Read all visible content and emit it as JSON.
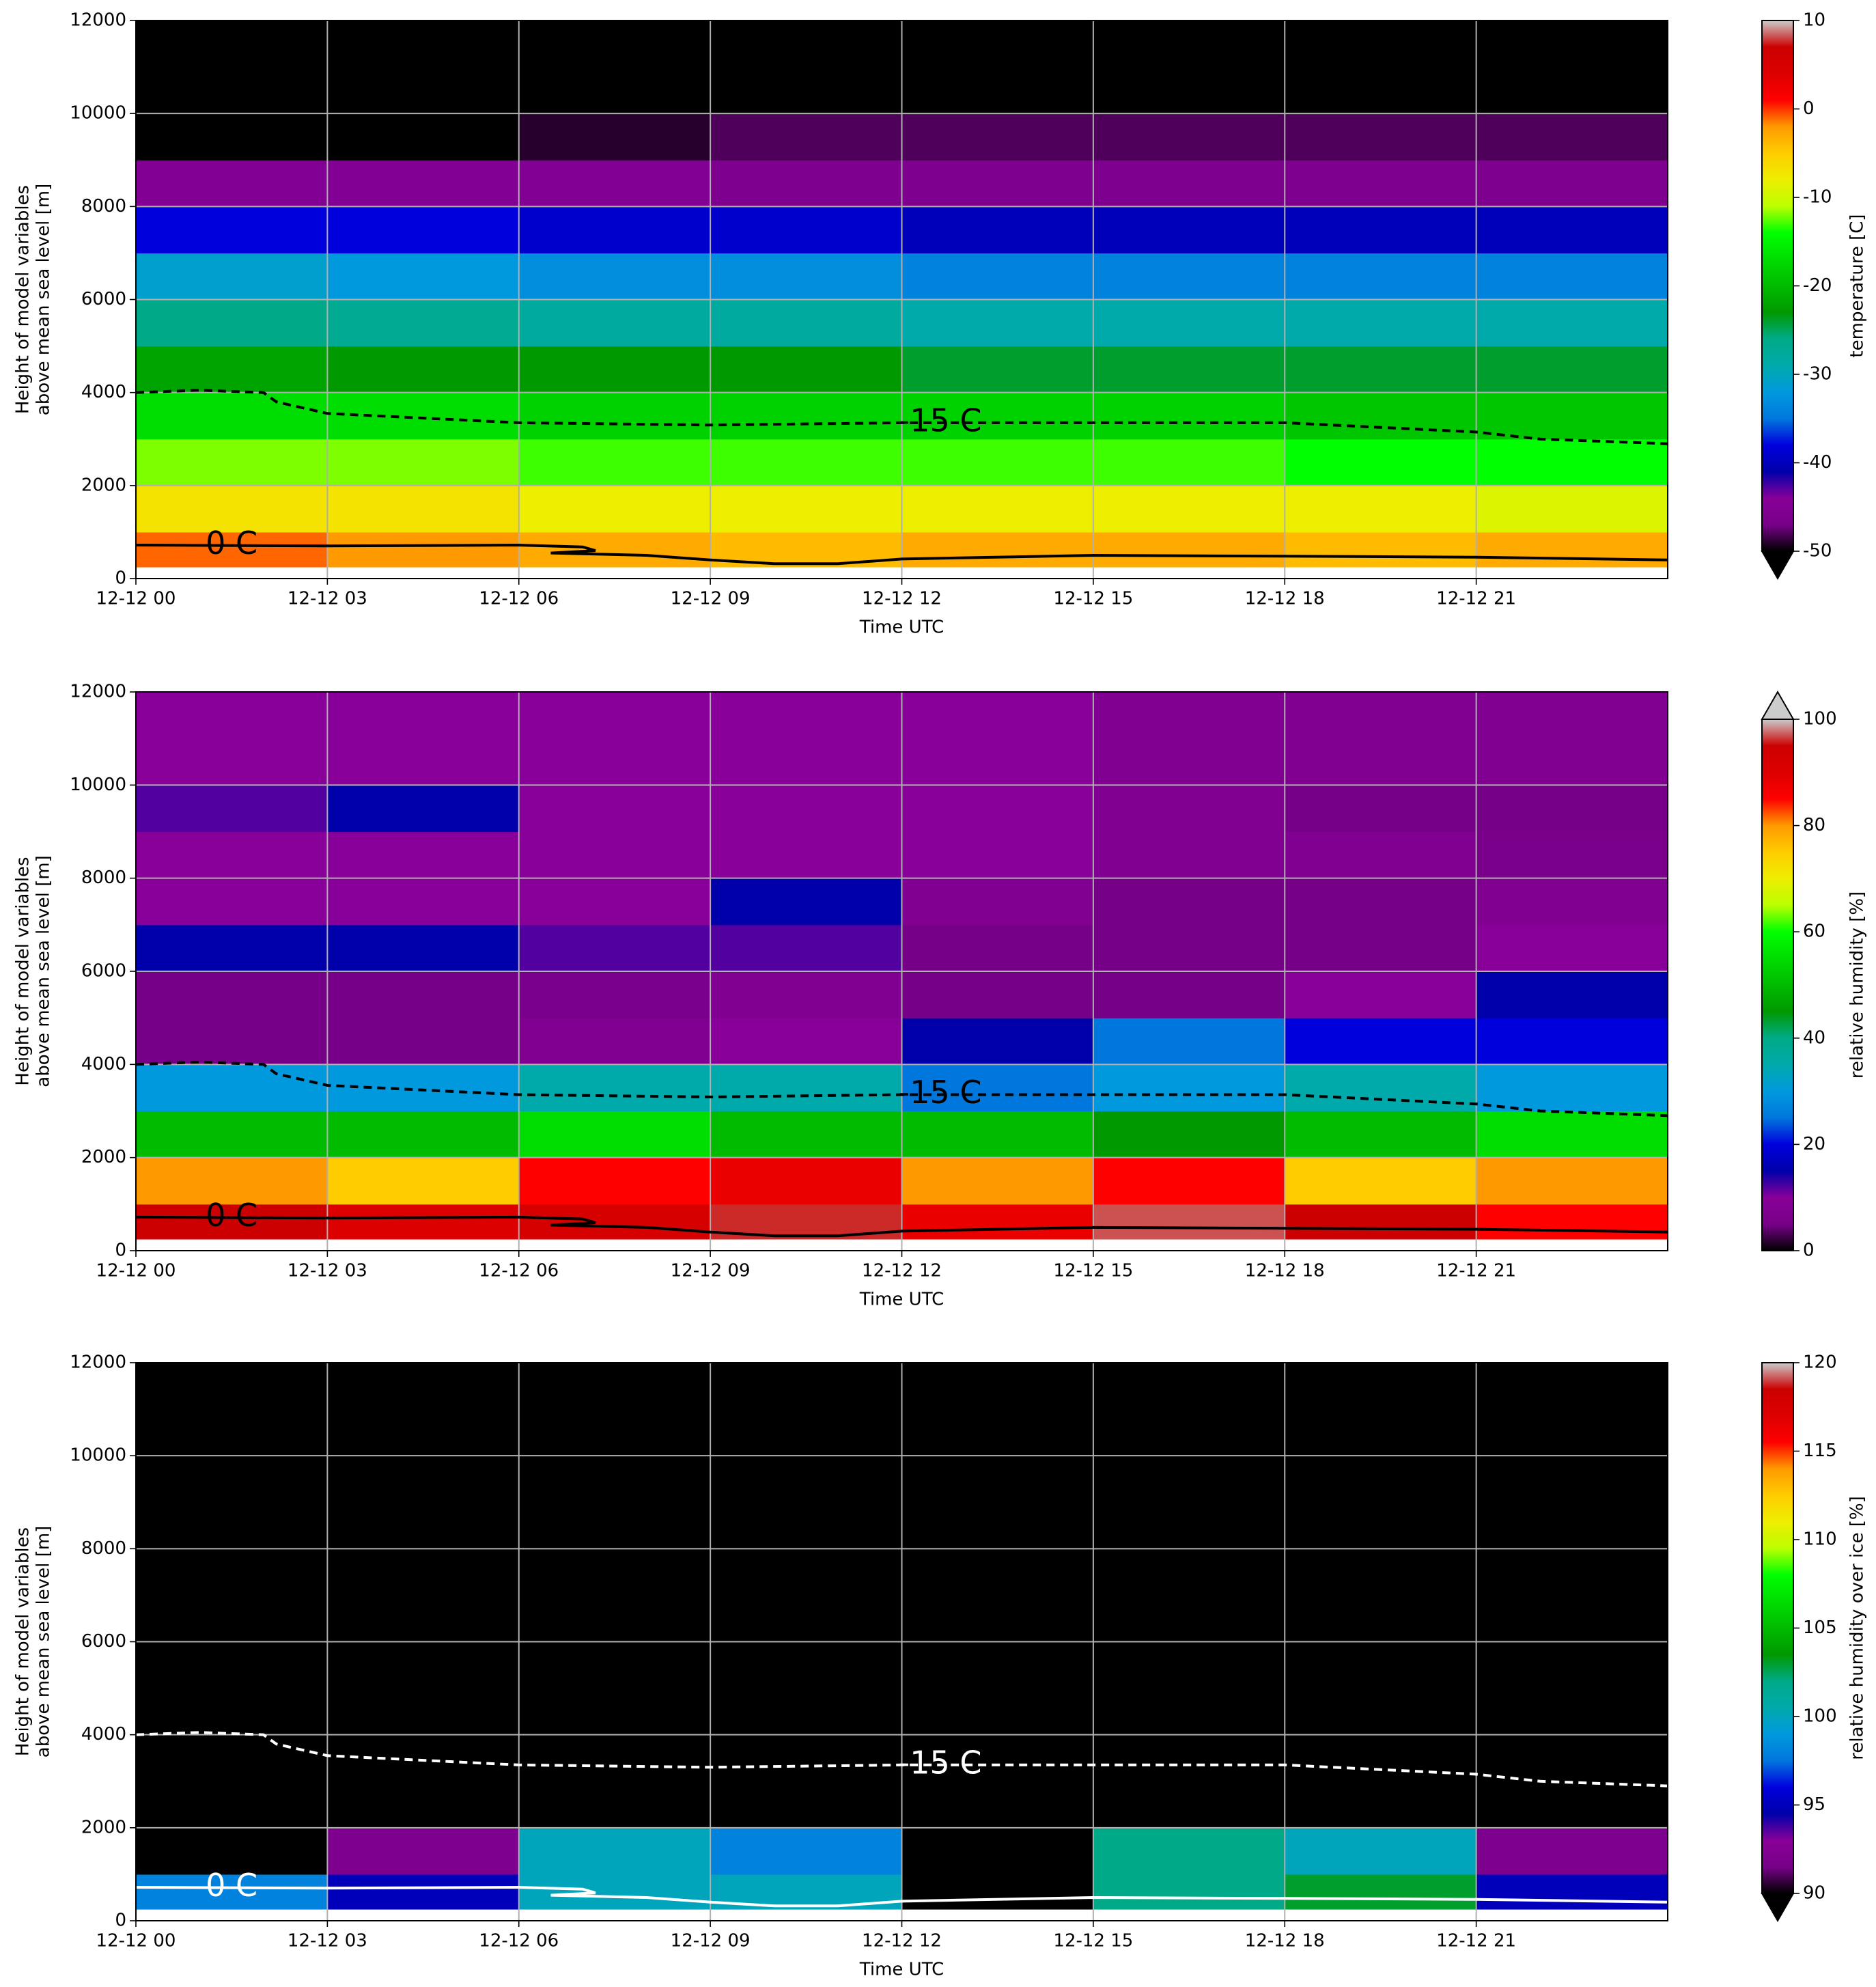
{
  "chart_data": [
    {
      "type": "heatmap",
      "colormap": "nipy_spectral",
      "extend": "min",
      "contour_color": "#000000",
      "xlabel": "Time UTC",
      "ylabel": [
        "Height of model variables",
        "above mean sea level [m]"
      ],
      "cbar_label": "temperature [C]",
      "clim": [
        -50,
        10
      ],
      "cbar_ticks": [
        -50,
        -40,
        -30,
        -20,
        -10,
        0,
        10
      ],
      "xlim": [
        0,
        24
      ],
      "ylim": [
        0,
        12000
      ],
      "xticks": [
        {
          "value": 0,
          "label": "12-12 00"
        },
        {
          "value": 3,
          "label": "12-12 03"
        },
        {
          "value": 6,
          "label": "12-12 06"
        },
        {
          "value": 9,
          "label": "12-12 09"
        },
        {
          "value": 12,
          "label": "12-12 12"
        },
        {
          "value": 15,
          "label": "12-12 15"
        },
        {
          "value": 18,
          "label": "12-12 18"
        },
        {
          "value": 21,
          "label": "12-12 21"
        }
      ],
      "yticks": [
        0,
        2000,
        4000,
        6000,
        8000,
        10000,
        12000
      ],
      "grid": true,
      "xbins": [
        0,
        3,
        6,
        9,
        12,
        15,
        18,
        21,
        24
      ],
      "ybins": [
        250,
        1000,
        2000,
        3000,
        4000,
        5000,
        6000,
        7000,
        8000,
        9000,
        10000,
        12000
      ],
      "z": [
        [
          -1,
          -2,
          -3,
          -4,
          -3,
          -3,
          -4,
          -3
        ],
        [
          -7,
          -7,
          -8,
          -8,
          -8,
          -8,
          -8,
          -9
        ],
        [
          -12,
          -12,
          -13,
          -13,
          -13,
          -13,
          -14,
          -14
        ],
        [
          -17,
          -17,
          -18,
          -18,
          -18,
          -18,
          -19,
          -19
        ],
        [
          -22,
          -23,
          -23,
          -23,
          -24,
          -24,
          -24,
          -24
        ],
        [
          -26,
          -27,
          -28,
          -28,
          -29,
          -29,
          -29,
          -29
        ],
        [
          -31,
          -32,
          -33,
          -33,
          -34,
          -34,
          -34,
          -34
        ],
        [
          -38,
          -38,
          -39,
          -39,
          -40,
          -40,
          -40,
          -40
        ],
        [
          -45,
          -45,
          -45,
          -46,
          -46,
          -46,
          -46,
          -46
        ],
        [
          -55,
          -50,
          -49,
          -48,
          -48,
          -48,
          -48,
          -48
        ],
        [
          -55,
          -55,
          -55,
          -55,
          -55,
          -55,
          -55,
          -55
        ]
      ],
      "contours": [
        {
          "label": "-15 C",
          "style": "dashed",
          "x": [
            0,
            1,
            2,
            2.2,
            3,
            6,
            9,
            12,
            15,
            18,
            21,
            22,
            24
          ],
          "y": [
            4000,
            4050,
            4000,
            3800,
            3550,
            3350,
            3300,
            3350,
            3350,
            3350,
            3150,
            3000,
            2900
          ]
        },
        {
          "label": "0 C",
          "style": "solid",
          "x": [
            0,
            3,
            6,
            7,
            7.2,
            6.5,
            8,
            9,
            10,
            11,
            12,
            15,
            18,
            21,
            24
          ],
          "y": [
            720,
            700,
            720,
            680,
            600,
            550,
            500,
            400,
            320,
            320,
            420,
            500,
            480,
            460,
            400
          ]
        }
      ]
    },
    {
      "type": "heatmap",
      "colormap": "nipy_spectral",
      "extend": "max",
      "contour_color": "#000000",
      "xlabel": "Time UTC",
      "ylabel": [
        "Height of model variables",
        "above mean sea level [m]"
      ],
      "cbar_label": "relative humidity [%]",
      "clim": [
        0,
        100
      ],
      "cbar_ticks": [
        0,
        20,
        40,
        60,
        80,
        100
      ],
      "xlim": [
        0,
        24
      ],
      "ylim": [
        0,
        12000
      ],
      "xticks": [
        {
          "value": 0,
          "label": "12-12 00"
        },
        {
          "value": 3,
          "label": "12-12 03"
        },
        {
          "value": 6,
          "label": "12-12 06"
        },
        {
          "value": 9,
          "label": "12-12 09"
        },
        {
          "value": 12,
          "label": "12-12 12"
        },
        {
          "value": 15,
          "label": "12-12 15"
        },
        {
          "value": 18,
          "label": "12-12 18"
        },
        {
          "value": 21,
          "label": "12-12 21"
        }
      ],
      "yticks": [
        0,
        2000,
        4000,
        6000,
        8000,
        10000,
        12000
      ],
      "grid": true,
      "xbins": [
        0,
        3,
        6,
        9,
        12,
        15,
        18,
        21,
        24
      ],
      "ybins": [
        250,
        1000,
        2000,
        3000,
        4000,
        5000,
        6000,
        7000,
        8000,
        9000,
        10000,
        12000
      ],
      "z": [
        [
          95,
          90,
          92,
          96,
          88,
          97,
          95,
          85
        ],
        [
          80,
          75,
          85,
          88,
          80,
          85,
          75,
          80
        ],
        [
          50,
          50,
          55,
          50,
          50,
          45,
          50,
          55
        ],
        [
          30,
          30,
          35,
          35,
          25,
          30,
          35,
          30
        ],
        [
          5,
          5,
          8,
          10,
          15,
          25,
          20,
          20
        ],
        [
          5,
          5,
          6,
          8,
          5,
          5,
          10,
          15
        ],
        [
          15,
          15,
          12,
          12,
          5,
          5,
          5,
          10
        ],
        [
          10,
          10,
          10,
          15,
          8,
          5,
          5,
          8
        ],
        [
          10,
          10,
          10,
          10,
          10,
          8,
          8,
          6
        ],
        [
          12,
          15,
          10,
          10,
          10,
          8,
          5,
          5
        ],
        [
          10,
          10,
          10,
          10,
          10,
          8,
          8,
          8
        ]
      ],
      "contours": [
        {
          "label": "-15 C",
          "style": "dashed",
          "x": [
            0,
            1,
            2,
            2.2,
            3,
            6,
            9,
            12,
            15,
            18,
            21,
            22,
            24
          ],
          "y": [
            4000,
            4050,
            4000,
            3800,
            3550,
            3350,
            3300,
            3350,
            3350,
            3350,
            3150,
            3000,
            2900
          ]
        },
        {
          "label": "0 C",
          "style": "solid",
          "x": [
            0,
            3,
            6,
            7,
            7.2,
            6.5,
            8,
            9,
            10,
            11,
            12,
            15,
            18,
            21,
            24
          ],
          "y": [
            720,
            700,
            720,
            680,
            600,
            550,
            500,
            400,
            320,
            320,
            420,
            500,
            480,
            460,
            400
          ]
        }
      ]
    },
    {
      "type": "heatmap",
      "colormap": "nipy_spectral",
      "extend": "min",
      "contour_color": "#ffffff",
      "xlabel": "Time UTC",
      "ylabel": [
        "Height of model variables",
        "above mean sea level [m]"
      ],
      "cbar_label": "relative humidity over ice [%]",
      "clim": [
        90,
        120
      ],
      "cbar_ticks": [
        90,
        95,
        100,
        105,
        110,
        115,
        120
      ],
      "xlim": [
        0,
        24
      ],
      "ylim": [
        0,
        12000
      ],
      "xticks": [
        {
          "value": 0,
          "label": "12-12 00"
        },
        {
          "value": 3,
          "label": "12-12 03"
        },
        {
          "value": 6,
          "label": "12-12 06"
        },
        {
          "value": 9,
          "label": "12-12 09"
        },
        {
          "value": 12,
          "label": "12-12 12"
        },
        {
          "value": 15,
          "label": "12-12 15"
        },
        {
          "value": 18,
          "label": "12-12 18"
        },
        {
          "value": 21,
          "label": "12-12 21"
        }
      ],
      "yticks": [
        0,
        2000,
        4000,
        6000,
        8000,
        10000,
        12000
      ],
      "grid": true,
      "xbins": [
        0,
        3,
        6,
        9,
        12,
        15,
        18,
        21,
        24
      ],
      "ybins": [
        250,
        1000,
        2000,
        3000,
        4000,
        5000,
        6000,
        7000,
        8000,
        9000,
        10000,
        12000
      ],
      "z": [
        [
          98,
          95,
          100,
          100,
          85,
          102,
          103,
          95
        ],
        [
          85,
          92,
          100,
          98,
          80,
          102,
          100,
          92
        ],
        [
          80,
          80,
          80,
          80,
          80,
          80,
          80,
          80
        ],
        [
          80,
          80,
          80,
          80,
          80,
          80,
          80,
          80
        ],
        [
          80,
          80,
          80,
          80,
          80,
          80,
          80,
          80
        ],
        [
          80,
          80,
          80,
          80,
          80,
          80,
          80,
          80
        ],
        [
          80,
          80,
          80,
          80,
          80,
          80,
          80,
          80
        ],
        [
          80,
          80,
          80,
          80,
          80,
          80,
          80,
          80
        ],
        [
          80,
          80,
          80,
          80,
          80,
          80,
          80,
          80
        ],
        [
          80,
          80,
          80,
          80,
          80,
          80,
          80,
          80
        ],
        [
          80,
          80,
          80,
          80,
          80,
          80,
          80,
          80
        ]
      ],
      "contours": [
        {
          "label": "-15 C",
          "style": "dashed",
          "x": [
            0,
            1,
            2,
            2.2,
            3,
            6,
            9,
            12,
            15,
            18,
            21,
            22,
            24
          ],
          "y": [
            4000,
            4050,
            4000,
            3800,
            3550,
            3350,
            3300,
            3350,
            3350,
            3350,
            3150,
            3000,
            2900
          ]
        },
        {
          "label": "0 C",
          "style": "solid",
          "x": [
            0,
            3,
            6,
            7,
            7.2,
            6.5,
            8,
            9,
            10,
            11,
            12,
            15,
            18,
            21,
            24
          ],
          "y": [
            720,
            700,
            720,
            680,
            600,
            550,
            500,
            400,
            320,
            320,
            420,
            500,
            480,
            460,
            400
          ]
        }
      ]
    }
  ]
}
